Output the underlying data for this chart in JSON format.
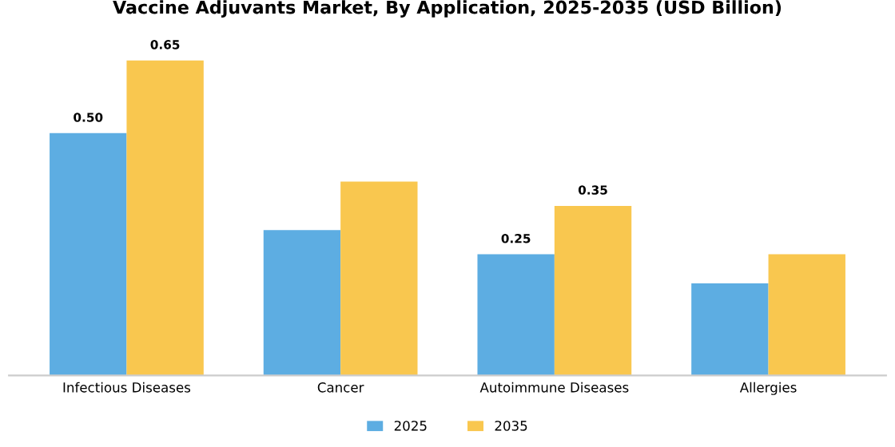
{
  "chart_data": {
    "type": "bar",
    "title": "Vaccine Adjuvants Market, By Application, 2025-2035 (USD Billion)",
    "categories": [
      "Infectious Diseases",
      "Cancer",
      "Autoimmune Diseases",
      "Allergies"
    ],
    "series": [
      {
        "name": "2025",
        "color": "#5dade2",
        "values": [
          0.5,
          0.3,
          0.25,
          0.19
        ],
        "value_labels": [
          "0.50",
          null,
          "0.25",
          null
        ]
      },
      {
        "name": "2035",
        "color": "#f9c74f",
        "values": [
          0.65,
          0.4,
          0.35,
          0.25
        ],
        "value_labels": [
          "0.65",
          null,
          "0.35",
          null
        ]
      }
    ],
    "legend": "bottom",
    "grid": false
  }
}
